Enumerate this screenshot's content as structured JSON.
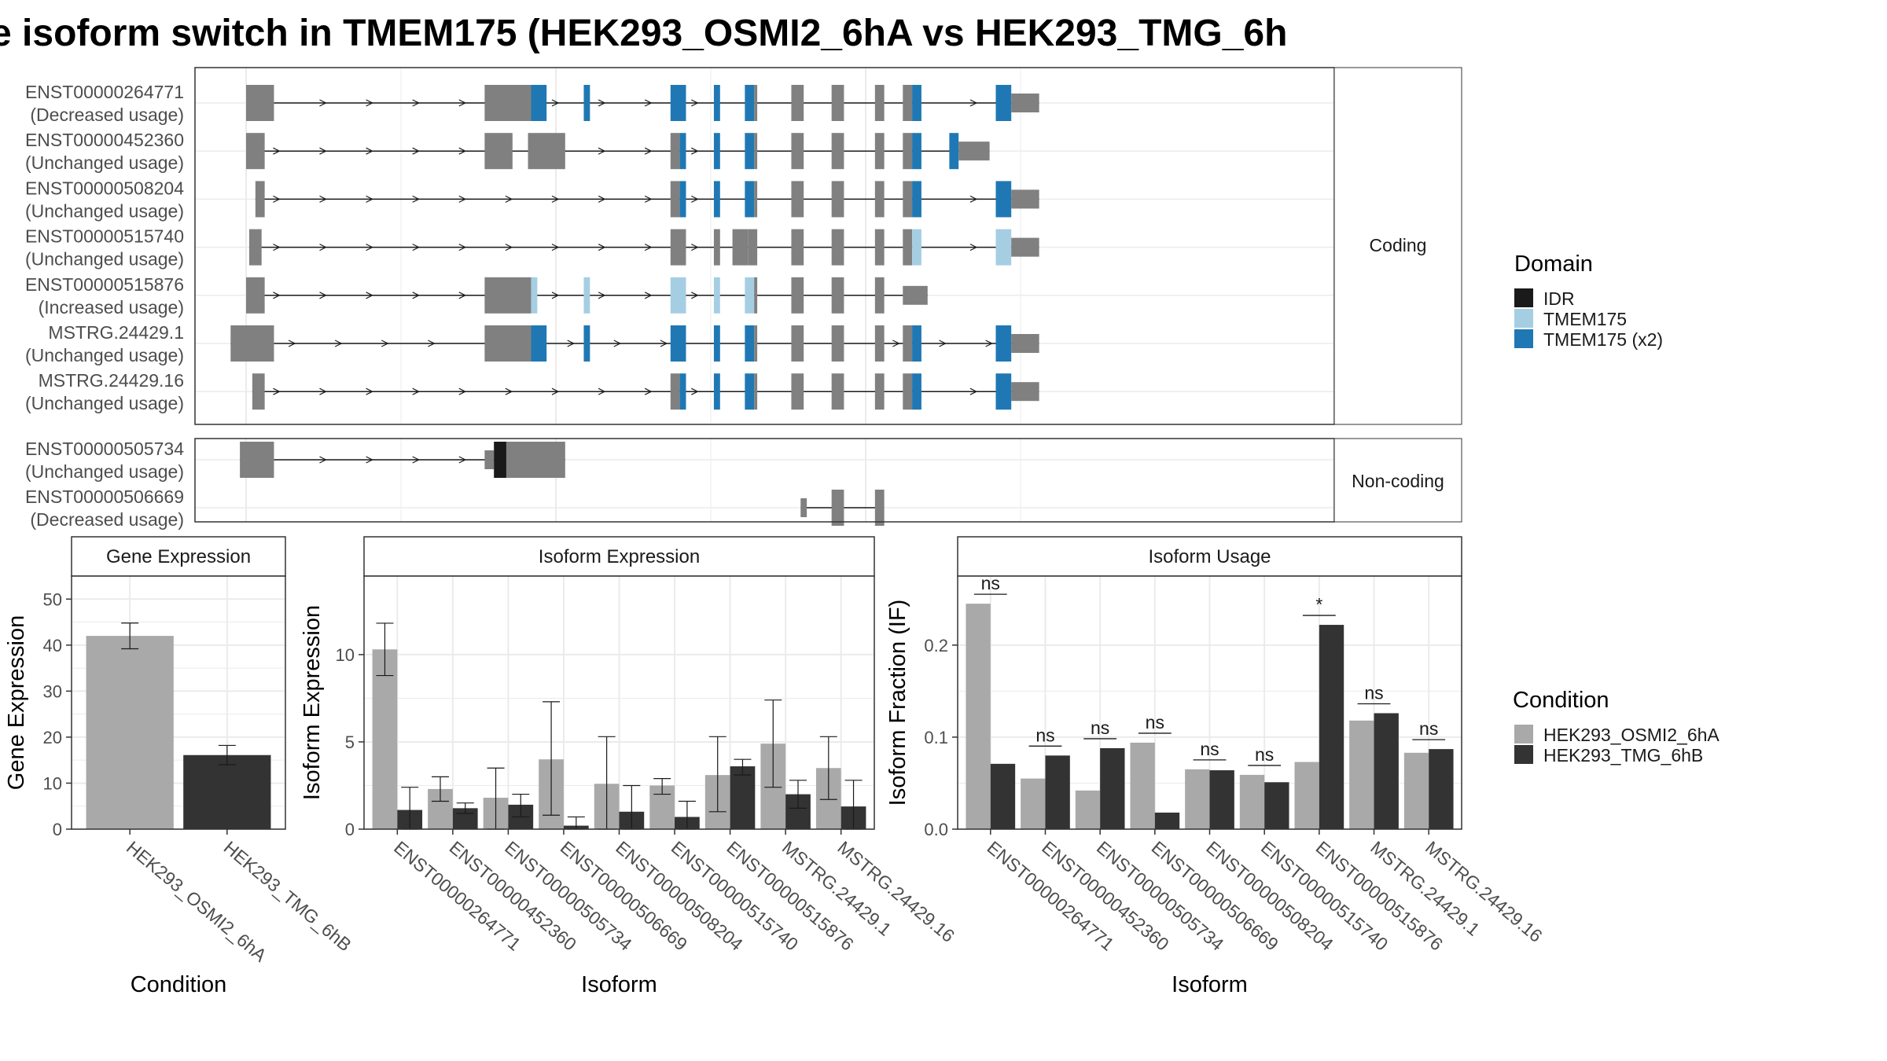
{
  "title": "e isoform switch in TMEM175 (HEK293_OSMI2_6hA vs HEK293_TMG_6h",
  "colors": {
    "exon": "#808080",
    "IDR": "#1a1a1a",
    "TMEM175": "#a6cee3",
    "TMEM175 (x2)": "#1f78b4",
    "cond1": "#a9a9a9",
    "cond2": "#333333",
    "grid": "#ebebeb",
    "strip_bg": "#ffffff",
    "panel_border": "#333333"
  },
  "legends": {
    "domain": {
      "title": "Domain",
      "items": [
        "IDR",
        "TMEM175",
        "TMEM175 (x2)"
      ]
    },
    "condition": {
      "title": "Condition",
      "items": [
        "HEK293_OSMI2_6hA",
        "HEK293_TMG_6hB"
      ]
    }
  },
  "structure": {
    "coding_label": "Coding",
    "noncoding_label": "Non-coding",
    "coding": [
      {
        "id": "ENST00000264771",
        "usage": "(Decreased usage)",
        "exons": [
          [
            0.0,
            0.09,
            "e"
          ],
          [
            0.77,
            0.92,
            "e"
          ],
          [
            0.92,
            0.97,
            "d2"
          ],
          [
            1.09,
            1.11,
            "d2"
          ],
          [
            1.37,
            1.42,
            "d2"
          ],
          [
            1.51,
            1.53,
            "d2"
          ],
          [
            1.61,
            1.64,
            "d2"
          ],
          [
            1.64,
            1.65,
            "e"
          ],
          [
            1.76,
            1.8,
            "e"
          ],
          [
            1.89,
            1.93,
            "e"
          ],
          [
            2.03,
            2.06,
            "e"
          ],
          [
            2.12,
            2.15,
            "e"
          ],
          [
            2.15,
            2.18,
            "d2"
          ],
          [
            2.42,
            2.47,
            "d2"
          ],
          [
            2.47,
            2.56,
            "e"
          ]
        ],
        "utr": [
          [
            0.0,
            0.05
          ],
          [
            0.77,
            0.82
          ],
          [
            2.47,
            2.56
          ]
        ]
      },
      {
        "id": "ENST00000452360",
        "usage": "(Unchanged usage)",
        "exons": [
          [
            0.0,
            0.06,
            "e"
          ],
          [
            0.77,
            0.86,
            "e"
          ],
          [
            0.91,
            1.03,
            "e"
          ],
          [
            1.37,
            1.4,
            "e"
          ],
          [
            1.4,
            1.42,
            "d2"
          ],
          [
            1.51,
            1.53,
            "d2"
          ],
          [
            1.61,
            1.64,
            "d2"
          ],
          [
            1.64,
            1.65,
            "e"
          ],
          [
            1.76,
            1.8,
            "e"
          ],
          [
            1.89,
            1.93,
            "e"
          ],
          [
            2.03,
            2.06,
            "e"
          ],
          [
            2.12,
            2.15,
            "e"
          ],
          [
            2.15,
            2.18,
            "d2"
          ],
          [
            2.27,
            2.3,
            "d2"
          ],
          [
            2.3,
            2.4,
            "e"
          ]
        ],
        "utr": [
          [
            2.3,
            2.4
          ]
        ]
      },
      {
        "id": "ENST00000508204",
        "usage": "(Unchanged usage)",
        "exons": [
          [
            0.03,
            0.06,
            "e"
          ],
          [
            1.37,
            1.4,
            "e"
          ],
          [
            1.4,
            1.42,
            "d2"
          ],
          [
            1.51,
            1.53,
            "d2"
          ],
          [
            1.61,
            1.64,
            "d2"
          ],
          [
            1.64,
            1.65,
            "e"
          ],
          [
            1.76,
            1.8,
            "e"
          ],
          [
            1.89,
            1.93,
            "e"
          ],
          [
            2.03,
            2.06,
            "e"
          ],
          [
            2.12,
            2.15,
            "e"
          ],
          [
            2.15,
            2.18,
            "d2"
          ],
          [
            2.42,
            2.47,
            "d2"
          ],
          [
            2.47,
            2.56,
            "e"
          ]
        ],
        "utr": [
          [
            2.47,
            2.56
          ]
        ]
      },
      {
        "id": "ENST00000515740",
        "usage": "(Unchanged usage)",
        "exons": [
          [
            0.01,
            0.05,
            "e"
          ],
          [
            1.37,
            1.42,
            "e"
          ],
          [
            1.51,
            1.53,
            "e"
          ],
          [
            1.57,
            1.62,
            "e"
          ],
          [
            1.62,
            1.65,
            "e"
          ],
          [
            1.76,
            1.8,
            "e"
          ],
          [
            1.89,
            1.93,
            "e"
          ],
          [
            2.03,
            2.06,
            "e"
          ],
          [
            2.12,
            2.15,
            "e"
          ],
          [
            2.15,
            2.18,
            "d1"
          ],
          [
            2.42,
            2.47,
            "d1"
          ],
          [
            2.47,
            2.56,
            "e"
          ]
        ],
        "utr": [
          [
            2.47,
            2.56
          ]
        ]
      },
      {
        "id": "ENST00000515876",
        "usage": "(Increased usage)",
        "exons": [
          [
            0.0,
            0.06,
            "e"
          ],
          [
            0.77,
            0.92,
            "e"
          ],
          [
            0.92,
            0.94,
            "d1"
          ],
          [
            1.09,
            1.11,
            "d1"
          ],
          [
            1.37,
            1.42,
            "d1"
          ],
          [
            1.51,
            1.53,
            "d1"
          ],
          [
            1.61,
            1.64,
            "d1"
          ],
          [
            1.64,
            1.65,
            "e"
          ],
          [
            1.76,
            1.8,
            "e"
          ],
          [
            1.89,
            1.93,
            "e"
          ],
          [
            2.03,
            2.06,
            "e"
          ],
          [
            2.12,
            2.2,
            "e"
          ]
        ],
        "utr": [
          [
            0.77,
            0.82
          ],
          [
            2.12,
            2.2
          ]
        ]
      },
      {
        "id": "MSTRG.24429.1",
        "usage": "(Unchanged usage)",
        "exons": [
          [
            -0.05,
            0.09,
            "e"
          ],
          [
            0.77,
            0.92,
            "e"
          ],
          [
            0.92,
            0.97,
            "d2"
          ],
          [
            1.09,
            1.11,
            "d2"
          ],
          [
            1.37,
            1.42,
            "d2"
          ],
          [
            1.51,
            1.53,
            "d2"
          ],
          [
            1.61,
            1.64,
            "d2"
          ],
          [
            1.64,
            1.65,
            "e"
          ],
          [
            1.76,
            1.8,
            "e"
          ],
          [
            1.89,
            1.93,
            "e"
          ],
          [
            2.03,
            2.06,
            "e"
          ],
          [
            2.12,
            2.15,
            "e"
          ],
          [
            2.15,
            2.18,
            "d2"
          ],
          [
            2.42,
            2.47,
            "d2"
          ],
          [
            2.47,
            2.56,
            "e"
          ]
        ],
        "utr": [
          [
            0.77,
            0.82
          ],
          [
            2.47,
            2.56
          ]
        ]
      },
      {
        "id": "MSTRG.24429.16",
        "usage": "(Unchanged usage)",
        "exons": [
          [
            0.02,
            0.06,
            "e"
          ],
          [
            1.37,
            1.4,
            "e"
          ],
          [
            1.4,
            1.42,
            "d2"
          ],
          [
            1.51,
            1.53,
            "d2"
          ],
          [
            1.61,
            1.64,
            "d2"
          ],
          [
            1.64,
            1.65,
            "e"
          ],
          [
            1.76,
            1.8,
            "e"
          ],
          [
            1.89,
            1.93,
            "e"
          ],
          [
            2.03,
            2.06,
            "e"
          ],
          [
            2.12,
            2.15,
            "e"
          ],
          [
            2.15,
            2.18,
            "d2"
          ],
          [
            2.42,
            2.47,
            "d2"
          ],
          [
            2.47,
            2.56,
            "e"
          ]
        ],
        "utr": [
          [
            2.47,
            2.56
          ]
        ]
      }
    ],
    "noncoding": [
      {
        "id": "ENST00000505734",
        "usage": "(Unchanged usage)",
        "exons": [
          [
            -0.02,
            0.09,
            "e"
          ],
          [
            0.77,
            0.8,
            "e"
          ],
          [
            0.8,
            0.84,
            "idr"
          ],
          [
            0.84,
            1.03,
            "e"
          ]
        ],
        "utr": [
          [
            0.77,
            0.8
          ],
          [
            0.94,
            1.03
          ]
        ]
      },
      {
        "id": "ENST00000506669",
        "usage": "(Decreased usage)",
        "exons": [
          [
            1.79,
            1.81,
            "e"
          ],
          [
            1.89,
            1.93,
            "e"
          ],
          [
            2.03,
            2.06,
            "e"
          ]
        ],
        "utr": [
          [
            1.79,
            1.81
          ]
        ]
      }
    ]
  },
  "chart_data": [
    {
      "type": "bar",
      "title": "Gene Expression",
      "xlabel": "Condition",
      "ylabel": "Gene Expression",
      "ylim": [
        0,
        55
      ],
      "yticks": [
        0,
        10,
        20,
        30,
        40,
        50
      ],
      "categories": [
        "HEK293_OSMI2_6hA",
        "HEK293_TMG_6hB"
      ],
      "values": [
        42,
        16.1
      ],
      "errors": [
        [
          39.2,
          44.8
        ],
        [
          14.0,
          18.2
        ]
      ]
    },
    {
      "type": "bar",
      "title": "Isoform Expression",
      "xlabel": "Isoform",
      "ylabel": "Isoform Expression",
      "ylim": [
        0,
        14.5
      ],
      "yticks": [
        0,
        5,
        10
      ],
      "categories": [
        "ENST00000264771",
        "ENST00000452360",
        "ENST00000505734",
        "ENST00000506669",
        "ENST00000508204",
        "ENST00000515740",
        "ENST00000515876",
        "MSTRG.24429.1",
        "MSTRG.24429.16"
      ],
      "series": [
        {
          "name": "HEK293_OSMI2_6hA",
          "values": [
            10.3,
            2.3,
            1.8,
            4.0,
            2.6,
            2.5,
            3.1,
            4.9,
            3.5
          ],
          "errors": [
            [
              8.8,
              11.8
            ],
            [
              1.6,
              3.0
            ],
            [
              0.0,
              3.5
            ],
            [
              0.8,
              7.3
            ],
            [
              0.0,
              5.3
            ],
            [
              2.0,
              2.9
            ],
            [
              1.0,
              5.3
            ],
            [
              2.4,
              7.4
            ],
            [
              1.7,
              5.3
            ]
          ]
        },
        {
          "name": "HEK293_TMG_6hB",
          "values": [
            1.1,
            1.2,
            1.4,
            0.2,
            1.0,
            0.7,
            3.6,
            2.0,
            1.3
          ],
          "errors": [
            [
              0.0,
              2.4
            ],
            [
              0.9,
              1.5
            ],
            [
              0.7,
              2.0
            ],
            [
              0.0,
              0.7
            ],
            [
              0.0,
              2.5
            ],
            [
              0.0,
              1.6
            ],
            [
              3.1,
              4.0
            ],
            [
              1.2,
              2.8
            ],
            [
              0.0,
              2.8
            ]
          ]
        }
      ]
    },
    {
      "type": "bar",
      "title": "Isoform Usage",
      "xlabel": "Isoform",
      "ylabel": "Isoform Fraction (IF)",
      "ylim": [
        0,
        0.275
      ],
      "yticks": [
        0.0,
        0.1,
        0.2
      ],
      "ytick_labels": [
        "0.0",
        "0.1",
        "0.2"
      ],
      "categories": [
        "ENST00000264771",
        "ENST00000452360",
        "ENST00000505734",
        "ENST00000506669",
        "ENST00000508204",
        "ENST00000515740",
        "ENST00000515876",
        "MSTRG.24429.1",
        "MSTRG.24429.16"
      ],
      "series": [
        {
          "name": "HEK293_OSMI2_6hA",
          "values": [
            0.245,
            0.055,
            0.042,
            0.094,
            0.065,
            0.059,
            0.073,
            0.118,
            0.083
          ]
        },
        {
          "name": "HEK293_TMG_6hB",
          "values": [
            0.071,
            0.08,
            0.088,
            0.018,
            0.064,
            0.051,
            0.222,
            0.126,
            0.087
          ]
        }
      ],
      "significance": [
        "ns",
        "ns",
        "ns",
        "ns",
        "ns",
        "ns",
        "*",
        "ns",
        "ns"
      ]
    }
  ]
}
